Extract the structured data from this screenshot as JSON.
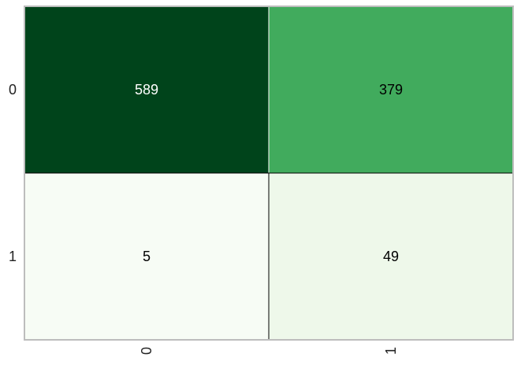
{
  "chart_data": {
    "type": "heatmap",
    "title": "",
    "xlabel": "",
    "ylabel": "",
    "x_categories": [
      "0",
      "1"
    ],
    "y_categories": [
      "0",
      "1"
    ],
    "values": [
      [
        589,
        379
      ],
      [
        5,
        49
      ]
    ],
    "colormap": "Greens",
    "grid": false,
    "colorbar": false,
    "colors": {
      "low": "#f7fcf5",
      "mid": "#41ab5d",
      "high": "#00441b",
      "light_text": "#ffffff",
      "dark_text": "#000000",
      "frame": "#bdbdbd"
    }
  }
}
